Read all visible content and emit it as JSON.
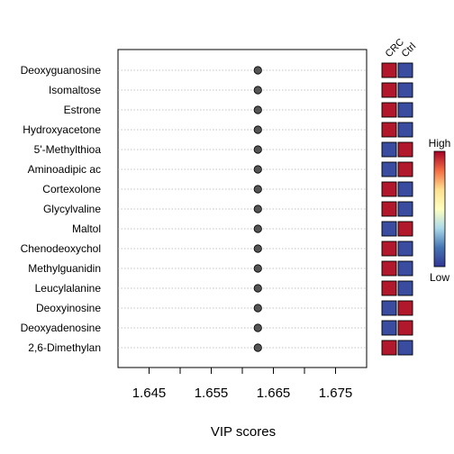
{
  "chart_data": {
    "type": "scatter",
    "xlabel": "VIP scores",
    "xlim": [
      1.64,
      1.68
    ],
    "xticks": [
      "1.645",
      "1.655",
      "1.665",
      "1.675"
    ],
    "grid": "horizontal dotted",
    "features": [
      "Deoxyguanosine",
      "Isomaltose",
      "Estrone",
      "Hydroxyacetone",
      "5'-Methylthioa",
      "Aminoadipic ac",
      "Cortexolone",
      "Glycylvaline",
      "Maltol",
      "Chenodeoxychol",
      "Methylguanidin",
      "Leucylalanine",
      "Deoxyinosine",
      "Deoxyadenosine",
      "2,6-Dimethylan"
    ],
    "values": [
      1.6625,
      1.6625,
      1.6625,
      1.6625,
      1.6625,
      1.6625,
      1.6625,
      1.6625,
      1.6625,
      1.6625,
      1.6625,
      1.6625,
      1.6625,
      1.6625,
      1.6625
    ],
    "heatmap": {
      "groups": [
        "CRC",
        "Ctrl"
      ],
      "levels": [
        [
          "high",
          "low"
        ],
        [
          "high",
          "low"
        ],
        [
          "high",
          "low"
        ],
        [
          "high",
          "low"
        ],
        [
          "low",
          "high"
        ],
        [
          "low",
          "high"
        ],
        [
          "high",
          "low"
        ],
        [
          "high",
          "low"
        ],
        [
          "low",
          "high"
        ],
        [
          "high",
          "low"
        ],
        [
          "high",
          "low"
        ],
        [
          "high",
          "low"
        ],
        [
          "low",
          "high"
        ],
        [
          "low",
          "high"
        ],
        [
          "high",
          "low"
        ]
      ]
    },
    "legend": {
      "high_label": "High",
      "low_label": "Low",
      "gradient": [
        "#a50026",
        "#f46d43",
        "#fee090",
        "#ffffbf",
        "#abd9e9",
        "#4575b4",
        "#313695"
      ]
    },
    "colors": {
      "high": "#b2182b",
      "low": "#3a4ca0",
      "point": "#555555"
    }
  }
}
